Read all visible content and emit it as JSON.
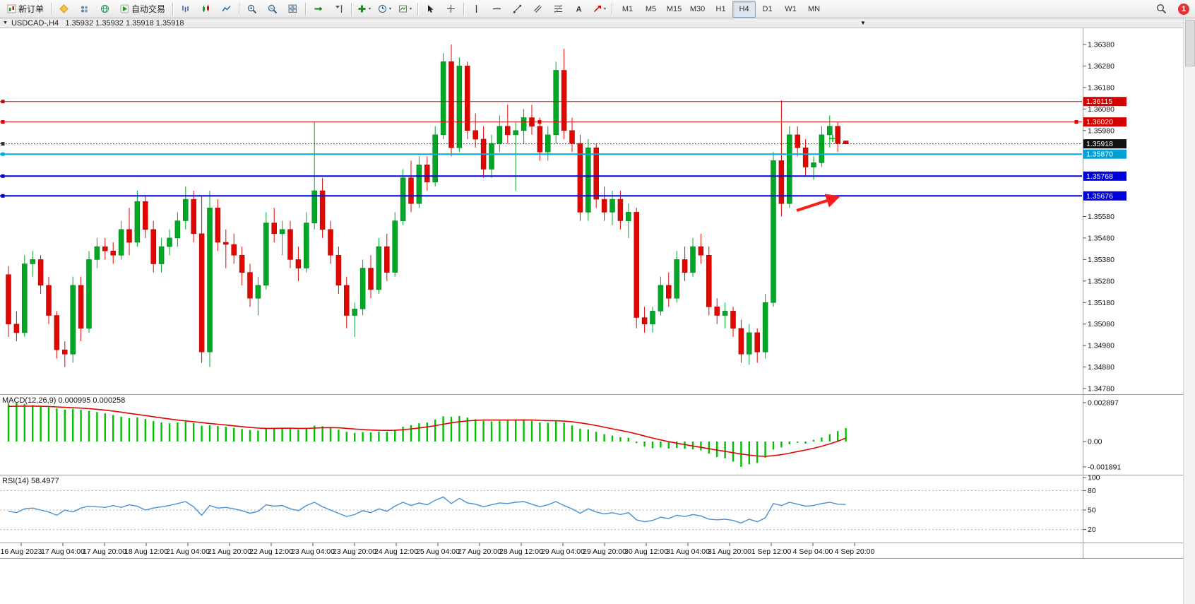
{
  "toolbar": {
    "new_order_label": "新订单",
    "autotrading_label": "自动交易",
    "timeframes": [
      "M1",
      "M5",
      "M15",
      "M30",
      "H1",
      "H4",
      "D1",
      "W1",
      "MN"
    ],
    "active_timeframe": "H4",
    "notification_count": "1"
  },
  "chart_window": {
    "title": "USDCAD-,H4   1.35932 1.35932 1.35918 1.35918"
  },
  "chart_data": {
    "type": "candlestick",
    "symbol": "USDCAD-",
    "timeframe": "H4",
    "current_ohlc": [
      1.35932,
      1.35932,
      1.35918,
      1.35918
    ],
    "colors": {
      "up": "#00A826",
      "up_dark": "#007018",
      "down": "#E10600",
      "down_dark": "#9c0400",
      "macd_histogram": "#00C000",
      "macd_signal": "#E10600",
      "rsi_line": "#4A90D2"
    },
    "price_axis_labels": [
      "1.36380",
      "1.36280",
      "1.36180",
      "1.36080",
      "1.35980",
      "1.35580",
      "1.35480",
      "1.35380",
      "1.35280",
      "1.35180",
      "1.35080",
      "1.34980",
      "1.34880",
      "1.34780"
    ],
    "levels": [
      {
        "price": 1.36115,
        "label": "1.36115",
        "color": "#d40000",
        "badge": "#d40000",
        "style": "solid",
        "width": 1,
        "handles": false
      },
      {
        "price": 1.3602,
        "label": "1.36020",
        "color": "#d40000",
        "badge": "#d40000",
        "style": "solid",
        "width": 1,
        "handles": true
      },
      {
        "price": 1.35918,
        "label": "1.35918",
        "color": "#333333",
        "badge": "#111111",
        "style": "dotted",
        "width": 1,
        "handles": false
      },
      {
        "price": 1.3587,
        "label": "1.35870",
        "color": "#00aadd",
        "badge": "#00a0d6",
        "style": "solid",
        "width": 2,
        "handles": false
      },
      {
        "price": 1.35768,
        "label": "1.35768",
        "color": "#0000dd",
        "badge": "#0000dd",
        "style": "solid",
        "width": 2,
        "handles": false
      },
      {
        "price": 1.35676,
        "label": "1.35676",
        "color": "#0000dd",
        "badge": "#0000dd",
        "style": "solid",
        "width": 2,
        "handles": false
      }
    ],
    "candles": [
      [
        1.3531,
        1.3535,
        1.3502,
        1.3508
      ],
      [
        1.3508,
        1.3514,
        1.35,
        1.3504
      ],
      [
        1.3504,
        1.354,
        1.3502,
        1.3536
      ],
      [
        1.3536,
        1.3542,
        1.353,
        1.3538
      ],
      [
        1.3538,
        1.354,
        1.3522,
        1.3526
      ],
      [
        1.3526,
        1.353,
        1.3508,
        1.3512
      ],
      [
        1.3512,
        1.3514,
        1.3492,
        1.3496
      ],
      [
        1.3496,
        1.35,
        1.3488,
        1.3494
      ],
      [
        1.3494,
        1.353,
        1.349,
        1.3526
      ],
      [
        1.3526,
        1.353,
        1.35,
        1.3506
      ],
      [
        1.3506,
        1.3542,
        1.3504,
        1.3538
      ],
      [
        1.3538,
        1.3548,
        1.3534,
        1.3544
      ],
      [
        1.3544,
        1.3548,
        1.3538,
        1.3542
      ],
      [
        1.3542,
        1.3546,
        1.3536,
        1.354
      ],
      [
        1.354,
        1.3556,
        1.3538,
        1.3552
      ],
      [
        1.3552,
        1.3562,
        1.354,
        1.3546
      ],
      [
        1.3546,
        1.357,
        1.3544,
        1.3565
      ],
      [
        1.3565,
        1.3568,
        1.3548,
        1.3552
      ],
      [
        1.3552,
        1.3556,
        1.3532,
        1.3536
      ],
      [
        1.3536,
        1.3548,
        1.3532,
        1.3544
      ],
      [
        1.3544,
        1.3552,
        1.354,
        1.3548
      ],
      [
        1.3548,
        1.356,
        1.3544,
        1.3556
      ],
      [
        1.3556,
        1.3572,
        1.3552,
        1.3566
      ],
      [
        1.3566,
        1.357,
        1.3546,
        1.355
      ],
      [
        1.355,
        1.3568,
        1.349,
        1.3495
      ],
      [
        1.3495,
        1.357,
        1.3488,
        1.3562
      ],
      [
        1.3562,
        1.3566,
        1.3542,
        1.3546
      ],
      [
        1.3546,
        1.3552,
        1.3534,
        1.3545
      ],
      [
        1.3545,
        1.355,
        1.3536,
        1.354
      ],
      [
        1.354,
        1.3544,
        1.3526,
        1.3532
      ],
      [
        1.3532,
        1.3536,
        1.3516,
        1.352
      ],
      [
        1.352,
        1.353,
        1.3512,
        1.3526
      ],
      [
        1.3526,
        1.356,
        1.3524,
        1.3555
      ],
      [
        1.3555,
        1.3562,
        1.3546,
        1.355
      ],
      [
        1.355,
        1.3556,
        1.354,
        1.3552
      ],
      [
        1.3552,
        1.3556,
        1.3534,
        1.3538
      ],
      [
        1.3538,
        1.3544,
        1.3528,
        1.3534
      ],
      [
        1.3534,
        1.356,
        1.3532,
        1.3555
      ],
      [
        1.3555,
        1.3602,
        1.3552,
        1.357
      ],
      [
        1.357,
        1.3576,
        1.3548,
        1.3552
      ],
      [
        1.3552,
        1.3556,
        1.3536,
        1.354
      ],
      [
        1.354,
        1.3544,
        1.3522,
        1.3526
      ],
      [
        1.3526,
        1.353,
        1.3506,
        1.3512
      ],
      [
        1.3512,
        1.3518,
        1.3502,
        1.3515
      ],
      [
        1.3515,
        1.3538,
        1.3512,
        1.3534
      ],
      [
        1.3534,
        1.354,
        1.352,
        1.3524
      ],
      [
        1.3524,
        1.3548,
        1.3522,
        1.3544
      ],
      [
        1.3544,
        1.355,
        1.3528,
        1.3532
      ],
      [
        1.3532,
        1.356,
        1.353,
        1.3556
      ],
      [
        1.3556,
        1.358,
        1.3554,
        1.3576
      ],
      [
        1.3576,
        1.3584,
        1.356,
        1.3564
      ],
      [
        1.3564,
        1.3586,
        1.3562,
        1.3582
      ],
      [
        1.3582,
        1.3586,
        1.357,
        1.3574
      ],
      [
        1.3574,
        1.36,
        1.3572,
        1.3596
      ],
      [
        1.3596,
        1.3634,
        1.3594,
        1.363
      ],
      [
        1.363,
        1.3638,
        1.3586,
        1.359
      ],
      [
        1.359,
        1.3632,
        1.3588,
        1.3628
      ],
      [
        1.3628,
        1.363,
        1.3594,
        1.3598
      ],
      [
        1.3598,
        1.3606,
        1.359,
        1.3594
      ],
      [
        1.3594,
        1.36,
        1.3576,
        1.358
      ],
      [
        1.358,
        1.3596,
        1.3576,
        1.3592
      ],
      [
        1.3592,
        1.3605,
        1.3588,
        1.36
      ],
      [
        1.36,
        1.361,
        1.3592,
        1.3596
      ],
      [
        1.3596,
        1.3602,
        1.357,
        1.3598
      ],
      [
        1.3598,
        1.3608,
        1.3592,
        1.3604
      ],
      [
        1.3604,
        1.361,
        1.3596,
        1.36
      ],
      [
        1.36,
        1.3604,
        1.3584,
        1.3588
      ],
      [
        1.3588,
        1.36,
        1.3584,
        1.3596
      ],
      [
        1.3596,
        1.363,
        1.3592,
        1.3626
      ],
      [
        1.3626,
        1.3636,
        1.3594,
        1.3598
      ],
      [
        1.3598,
        1.3604,
        1.3588,
        1.3592
      ],
      [
        1.3592,
        1.3596,
        1.3556,
        1.356
      ],
      [
        1.356,
        1.3594,
        1.3556,
        1.359
      ],
      [
        1.359,
        1.3592,
        1.3562,
        1.3566
      ],
      [
        1.3566,
        1.3572,
        1.3556,
        1.356
      ],
      [
        1.356,
        1.357,
        1.3554,
        1.3566
      ],
      [
        1.3566,
        1.357,
        1.3552,
        1.3556
      ],
      [
        1.3556,
        1.3564,
        1.3548,
        1.356
      ],
      [
        1.356,
        1.3562,
        1.3506,
        1.3511
      ],
      [
        1.3511,
        1.3516,
        1.3504,
        1.3508
      ],
      [
        1.3508,
        1.3516,
        1.3504,
        1.3514
      ],
      [
        1.3514,
        1.353,
        1.3512,
        1.3526
      ],
      [
        1.3526,
        1.3532,
        1.3516,
        1.352
      ],
      [
        1.352,
        1.3542,
        1.3518,
        1.3538
      ],
      [
        1.3538,
        1.3544,
        1.3528,
        1.3532
      ],
      [
        1.3532,
        1.3548,
        1.353,
        1.3544
      ],
      [
        1.3544,
        1.355,
        1.3536,
        1.354
      ],
      [
        1.354,
        1.3544,
        1.3512,
        1.3516
      ],
      [
        1.3516,
        1.352,
        1.3508,
        1.3512
      ],
      [
        1.3512,
        1.3518,
        1.3506,
        1.3514
      ],
      [
        1.3514,
        1.3516,
        1.3502,
        1.3506
      ],
      [
        1.3506,
        1.351,
        1.349,
        1.3494
      ],
      [
        1.3494,
        1.3508,
        1.3489,
        1.3504
      ],
      [
        1.3504,
        1.3506,
        1.349,
        1.3495
      ],
      [
        1.3495,
        1.3522,
        1.3492,
        1.3518
      ],
      [
        1.3518,
        1.3588,
        1.3516,
        1.3584
      ],
      [
        1.3584,
        1.3612,
        1.3558,
        1.3564
      ],
      [
        1.3564,
        1.36,
        1.3562,
        1.3596
      ],
      [
        1.3596,
        1.36,
        1.3586,
        1.359
      ],
      [
        1.359,
        1.3594,
        1.3577,
        1.3581
      ],
      [
        1.3581,
        1.3586,
        1.3575,
        1.3583
      ],
      [
        1.3583,
        1.36,
        1.3581,
        1.3596
      ],
      [
        1.3596,
        1.3605,
        1.359,
        1.36
      ],
      [
        1.36,
        1.3602,
        1.3588,
        1.3592
      ],
      [
        1.35932,
        1.35932,
        1.35918,
        1.35918
      ]
    ],
    "time_labels": [
      "16 Aug 2023",
      "17 Aug 04:00",
      "17 Aug 20:00",
      "18 Aug 12:00",
      "21 Aug 04:00",
      "21 Aug 20:00",
      "22 Aug 12:00",
      "23 Aug 04:00",
      "23 Aug 20:00",
      "24 Aug 12:00",
      "25 Aug 04:00",
      "27 Aug 20:00",
      "28 Aug 12:00",
      "29 Aug 04:00",
      "29 Aug 20:00",
      "30 Aug 12:00",
      "31 Aug 04:00",
      "31 Aug 20:00",
      "1 Sep 12:00",
      "4 Sep 04:00",
      "4 Sep 20:00"
    ],
    "macd": {
      "label": "MACD(12,26,9)",
      "value_main": "0.000995",
      "value_signal": "0.000258",
      "axis_labels": [
        "0.002897",
        "0.00",
        "-0.001891"
      ],
      "histogram": [
        0.00285,
        0.00289,
        0.0028,
        0.00272,
        0.00265,
        0.00255,
        0.00246,
        0.00238,
        0.00244,
        0.00236,
        0.00228,
        0.0022,
        0.0021,
        0.00198,
        0.00185,
        0.00175,
        0.0018,
        0.00168,
        0.00152,
        0.00142,
        0.00136,
        0.00142,
        0.00148,
        0.00138,
        0.00118,
        0.00122,
        0.00116,
        0.0011,
        0.00102,
        0.00094,
        0.00086,
        0.00082,
        0.00096,
        0.00102,
        0.001,
        0.00094,
        0.00088,
        0.00098,
        0.00118,
        0.00114,
        0.00102,
        0.00088,
        0.00072,
        0.00064,
        0.0007,
        0.00068,
        0.00074,
        0.00072,
        0.00086,
        0.0011,
        0.00122,
        0.00136,
        0.00142,
        0.00164,
        0.00188,
        0.00184,
        0.0019,
        0.00178,
        0.00166,
        0.00154,
        0.0015,
        0.00154,
        0.00158,
        0.0016,
        0.00162,
        0.00154,
        0.00142,
        0.0014,
        0.0015,
        0.0014,
        0.0012,
        0.00096,
        0.0009,
        0.00072,
        0.00055,
        0.00044,
        0.00032,
        0.00028,
        -0.00012,
        -0.00038,
        -0.0005,
        -0.00044,
        -0.00052,
        -0.00048,
        -0.00054,
        -0.00058,
        -0.00066,
        -0.0009,
        -0.00115,
        -0.00125,
        -0.0015,
        -0.00189,
        -0.0017,
        -0.0016,
        -0.0012,
        -0.0006,
        -0.00044,
        -0.0002,
        -0.0001,
        -0.00016,
        0.00012,
        0.0003,
        0.00055,
        0.00078,
        0.001
      ],
      "signal": [
        0.00262,
        0.00263,
        0.00264,
        0.00264,
        0.00263,
        0.00261,
        0.00258,
        0.00255,
        0.00252,
        0.00249,
        0.00245,
        0.0024,
        0.00234,
        0.00227,
        0.00219,
        0.0021,
        0.00202,
        0.00194,
        0.00185,
        0.00176,
        0.00168,
        0.0016,
        0.00154,
        0.00148,
        0.00141,
        0.00135,
        0.00129,
        0.00123,
        0.00117,
        0.00111,
        0.00105,
        0.001,
        0.00098,
        0.00098,
        0.00099,
        0.00099,
        0.00098,
        0.00098,
        0.001,
        0.00103,
        0.00104,
        0.00102,
        0.00098,
        0.00093,
        0.00089,
        0.00086,
        0.00084,
        0.00083,
        0.00084,
        0.00088,
        0.00094,
        0.00101,
        0.00109,
        0.00118,
        0.00129,
        0.00139,
        0.00148,
        0.00154,
        0.00158,
        0.0016,
        0.0016,
        0.0016,
        0.0016,
        0.0016,
        0.00161,
        0.0016,
        0.00158,
        0.00156,
        0.00155,
        0.00152,
        0.00147,
        0.00139,
        0.0013,
        0.00119,
        0.00107,
        0.00095,
        0.00083,
        0.00071,
        0.00057,
        0.00041,
        0.00026,
        0.00012,
        -1e-05,
        -0.00012,
        -0.00023,
        -0.00033,
        -0.00043,
        -0.00053,
        -0.00064,
        -0.00073,
        -0.00083,
        -0.00093,
        -0.00101,
        -0.00108,
        -0.0011,
        -0.00106,
        -0.00098,
        -0.00087,
        -0.00075,
        -0.00063,
        -0.0005,
        -0.00035,
        -0.00018,
        2e-05,
        0.00026
      ]
    },
    "rsi": {
      "label": "RSI(14)",
      "value": "58.4977",
      "axis_labels": [
        "100",
        "80",
        "50",
        "20"
      ],
      "levels": [
        80,
        50,
        20
      ],
      "series": [
        48,
        46,
        52,
        53,
        50,
        47,
        42,
        50,
        47,
        53,
        56,
        55,
        54,
        57,
        54,
        58,
        56,
        50,
        53,
        55,
        57,
        60,
        63,
        55,
        42,
        57,
        53,
        54,
        52,
        49,
        45,
        48,
        58,
        56,
        57,
        52,
        49,
        57,
        62,
        55,
        50,
        45,
        40,
        43,
        49,
        46,
        52,
        48,
        56,
        62,
        57,
        61,
        58,
        65,
        70,
        60,
        68,
        61,
        59,
        55,
        58,
        61,
        60,
        62,
        63,
        59,
        55,
        58,
        63,
        57,
        52,
        45,
        52,
        47,
        44,
        46,
        43,
        46,
        35,
        32,
        34,
        39,
        37,
        42,
        40,
        43,
        41,
        36,
        35,
        36,
        34,
        30,
        36,
        32,
        38,
        60,
        57,
        62,
        59,
        56,
        57,
        60,
        62,
        59,
        58.5
      ]
    },
    "annotation": {
      "type": "arrow",
      "color": "#ff1a1a"
    }
  }
}
